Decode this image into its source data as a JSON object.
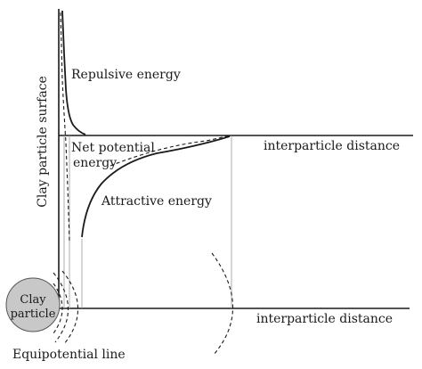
{
  "diagram": {
    "y_axis_label": "Clay particle surface",
    "x_axis_label_top": "interparticle distance",
    "x_axis_label_bottom": "interparticle distance",
    "repulsive_label": "Repulsive energy",
    "net_label_line1": "Net potential",
    "net_label_line2": "energy",
    "attractive_label": "Attractive energy",
    "particle_line1": "Clay",
    "particle_line2": "particle",
    "equipotential_label": "Equipotential line"
  },
  "colors": {
    "line": "#1a1a1a",
    "guide": "#9a9a9a",
    "particle_fill": "#c8c8c8"
  }
}
